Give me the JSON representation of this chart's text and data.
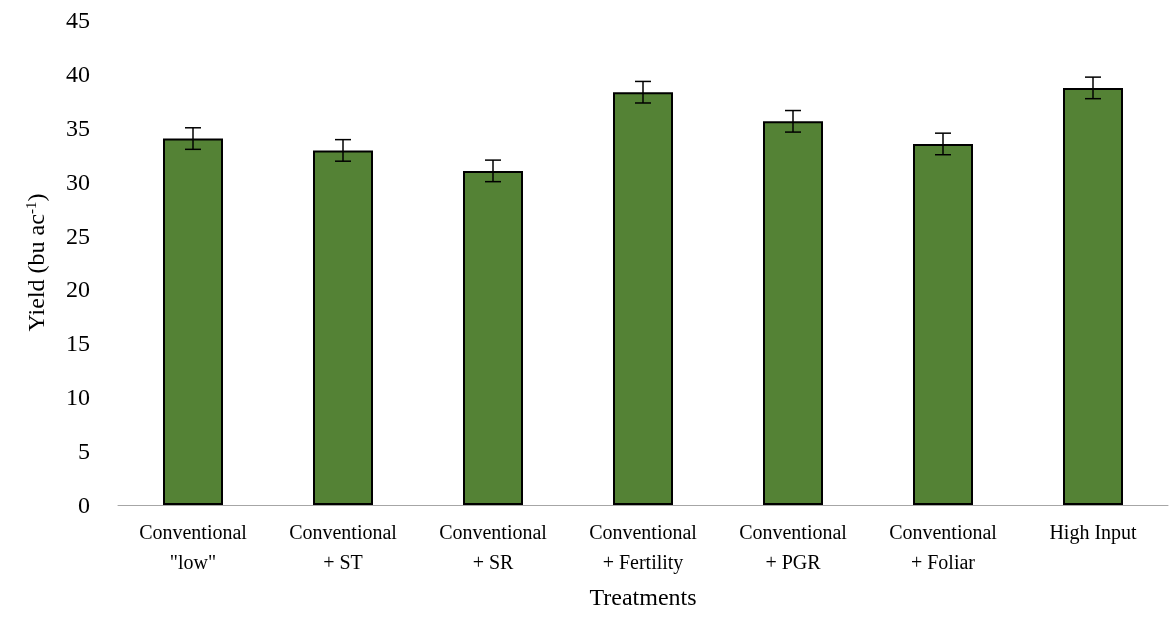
{
  "chart_data": {
    "type": "bar",
    "categories": [
      "Conventional\n\"low\"",
      "Conventional\n+ ST",
      "Conventional\n+ SR",
      "Conventional\n+ Fertility",
      "Conventional\n+ PGR",
      "Conventional\n+ Foliar",
      "High Input"
    ],
    "values": [
      34.0,
      32.9,
      31.0,
      38.3,
      35.6,
      33.5,
      38.7
    ],
    "errors": [
      1.0,
      1.0,
      1.0,
      1.0,
      1.0,
      1.0,
      1.0
    ],
    "color": "#548235",
    "xlabel": "Treatments",
    "ylabel": "Yield (bu ac$^{-1}$)",
    "ylim": [
      0,
      45
    ],
    "yticks": [
      0,
      5,
      10,
      15,
      20,
      25,
      30,
      35,
      40,
      45
    ],
    "grid": false
  }
}
